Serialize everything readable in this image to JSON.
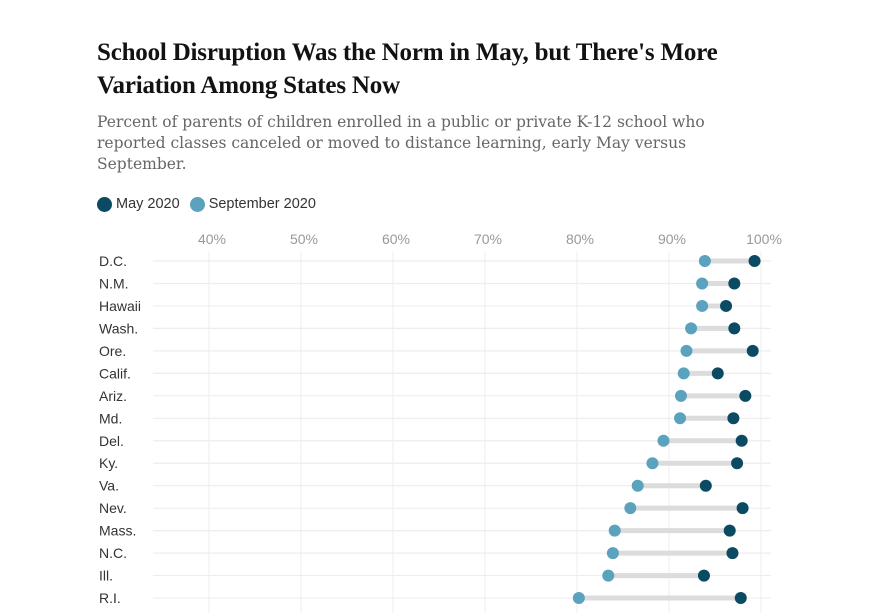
{
  "header": {
    "title": "School Disruption Was the Norm in May, but There's More Variation Among States Now",
    "subtitle": "Percent of parents of children enrolled in a public or private K-12 school who reported classes canceled or moved to distance learning, early May versus September."
  },
  "legend": [
    {
      "label": "May 2020",
      "color": "#0b4a63"
    },
    {
      "label": "September 2020",
      "color": "#5aa2bd"
    }
  ],
  "chart_data": {
    "type": "dumbbell",
    "title": "School Disruption Was the Norm in May, but There's More Variation Among States Now",
    "subtitle": "Percent of parents of children enrolled in a public or private K-12 school who reported classes canceled or moved to distance learning, early May versus September.",
    "xlabel": "",
    "ylabel": "",
    "xlim": [
      34,
      101
    ],
    "xticks": [
      40,
      50,
      60,
      70,
      80,
      90,
      100
    ],
    "xtick_labels": [
      "40%",
      "50%",
      "60%",
      "70%",
      "80%",
      "90%",
      "100%"
    ],
    "grid": true,
    "legend_position": "top-left",
    "categories": [
      "D.C.",
      "N.M.",
      "Hawaii",
      "Wash.",
      "Ore.",
      "Calif.",
      "Ariz.",
      "Md.",
      "Del.",
      "Ky.",
      "Va.",
      "Nev.",
      "Mass.",
      "N.C.",
      "Ill.",
      "R.I."
    ],
    "series": [
      {
        "name": "May 2020",
        "color": "#0b4a63",
        "values": [
          99.3,
          97.1,
          96.2,
          97.1,
          99.1,
          95.3,
          98.3,
          97.0,
          97.9,
          97.4,
          94.0,
          98.0,
          96.6,
          96.9,
          93.8,
          97.8
        ]
      },
      {
        "name": "September 2020",
        "color": "#5aa2bd",
        "values": [
          93.9,
          93.6,
          93.6,
          92.4,
          91.9,
          91.6,
          91.3,
          91.2,
          89.4,
          88.2,
          86.6,
          85.8,
          84.1,
          83.9,
          83.4,
          80.2
        ]
      }
    ]
  }
}
